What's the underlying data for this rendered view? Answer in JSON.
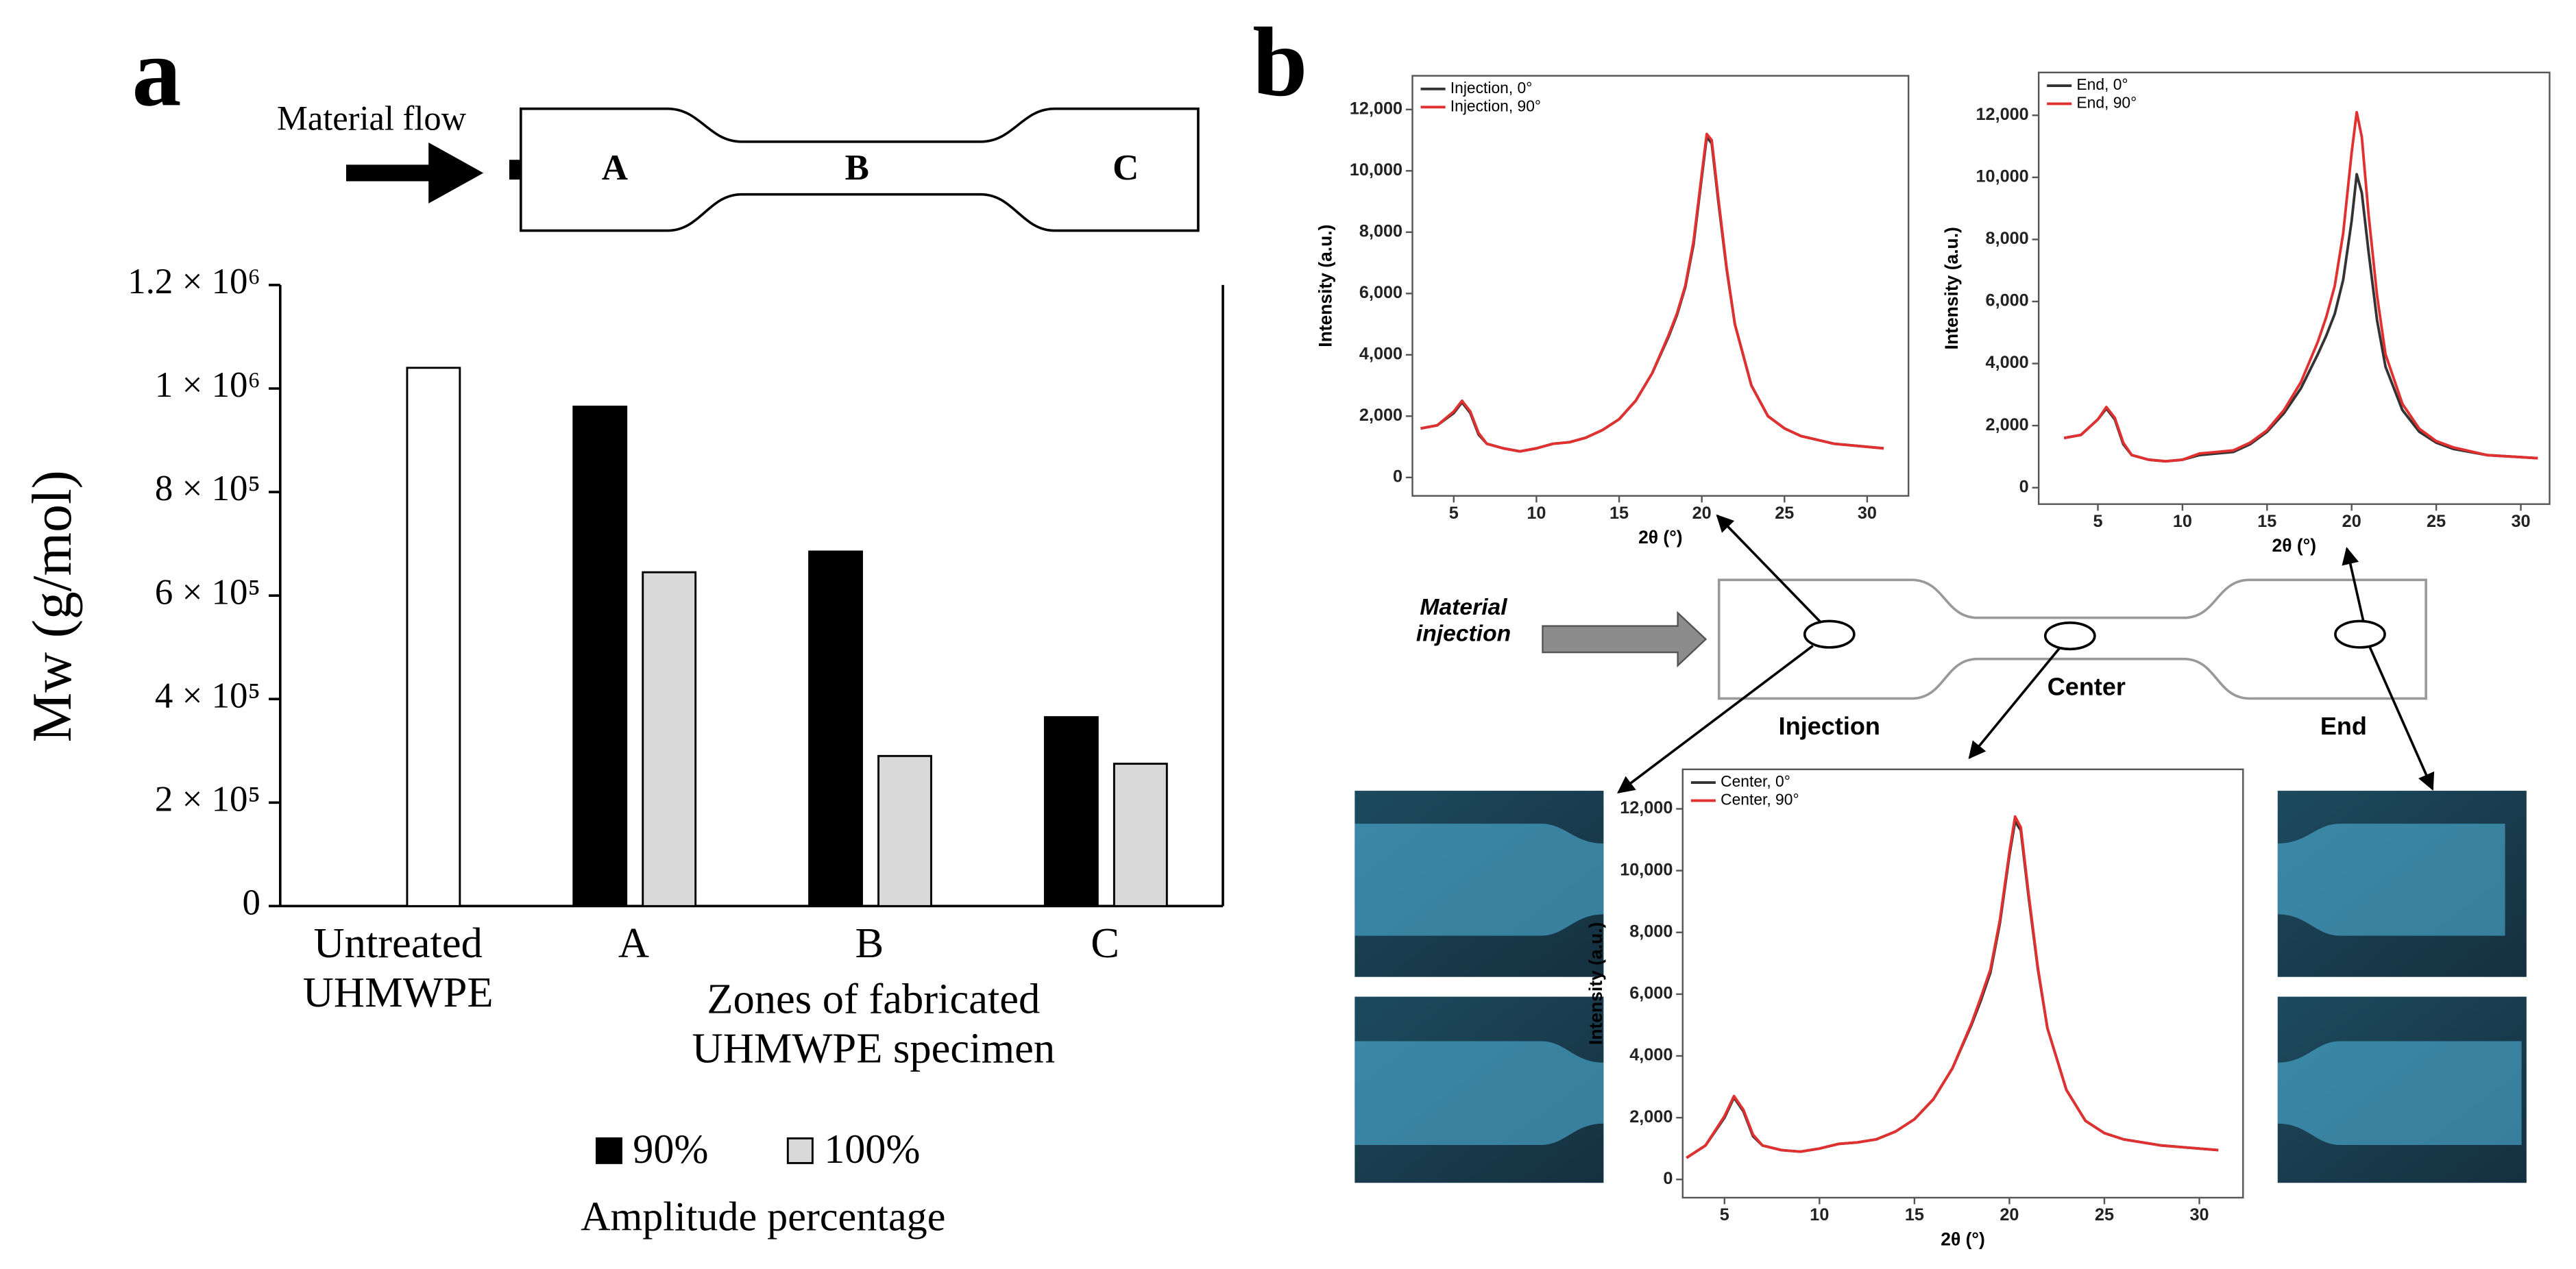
{
  "panel_labels": [
    "a",
    "b"
  ],
  "diagram_a": {
    "flow_label": "Material flow",
    "zones": [
      "A",
      "B",
      "C"
    ]
  },
  "diagram_b": {
    "injection_label": "Material injection",
    "locations": [
      "Injection",
      "Center",
      "End"
    ]
  },
  "chart_data": [
    {
      "type": "bar",
      "categories": [
        "Untreated UHMWPE",
        "A",
        "B",
        "C"
      ],
      "series": [
        {
          "name": "90%",
          "color": "#000000",
          "values": [
            null,
            965000,
            685000,
            365000
          ]
        },
        {
          "name": "100%",
          "color": "#d9d9d9",
          "point_colors": [
            "#ffffff",
            "#d9d9d9",
            "#d9d9d9",
            "#d9d9d9"
          ],
          "values": [
            1040000,
            645000,
            290000,
            275000
          ]
        }
      ],
      "xlabel": "Zones of fabricated UHMWPE specimen",
      "ylabel": "Mw (g/mol)",
      "legend_title": "Amplitude percentage",
      "ylim": [
        0,
        1200000
      ],
      "yticks": [
        0,
        {
          "value": 200000,
          "label": "2 × 10⁵"
        },
        {
          "value": 400000,
          "label": "4 × 10⁵"
        },
        {
          "value": 600000,
          "label": "6 × 10⁵"
        },
        {
          "value": 800000,
          "label": "8 × 10⁵"
        },
        {
          "value": 1000000,
          "label": "1 × 10⁶"
        },
        {
          "value": 1200000,
          "label": "1.2 × 10⁶"
        }
      ]
    },
    {
      "type": "line",
      "x": [
        3,
        4,
        5,
        5.5,
        6,
        6.5,
        7,
        8,
        9,
        10,
        11,
        12,
        13,
        14,
        15,
        16,
        17,
        18,
        18.5,
        19,
        19.5,
        20,
        20.3,
        20.6,
        21,
        21.5,
        22,
        23,
        24,
        25,
        26,
        28,
        31
      ],
      "series": [
        {
          "name": "Injection, 0°",
          "color": "#333333",
          "values": [
            1600,
            1700,
            2100,
            2450,
            2100,
            1400,
            1100,
            950,
            850,
            950,
            1100,
            1150,
            1300,
            1550,
            1900,
            2500,
            3400,
            4600,
            5300,
            6200,
            7600,
            9800,
            11100,
            10900,
            9000,
            6800,
            5000,
            3000,
            2000,
            1600,
            1350,
            1100,
            950
          ]
        },
        {
          "name": "Injection, 90°",
          "color": "#e03030",
          "values": [
            1600,
            1700,
            2150,
            2500,
            2150,
            1450,
            1100,
            950,
            850,
            950,
            1100,
            1150,
            1300,
            1550,
            1900,
            2500,
            3400,
            4650,
            5350,
            6250,
            7700,
            9900,
            11200,
            11000,
            9100,
            6850,
            5000,
            3000,
            2000,
            1600,
            1350,
            1100,
            950
          ]
        }
      ],
      "xlabel": "2θ (°)",
      "ylabel": "Intensity (a.u.)",
      "xlim": [
        2.5,
        32.5
      ],
      "ylim": [
        -600,
        13100
      ],
      "xticks": [
        5,
        10,
        15,
        20,
        25,
        30
      ],
      "yticks": [
        0,
        {
          "value": 2000,
          "label": "2,000"
        },
        {
          "value": 4000,
          "label": "4,000"
        },
        {
          "value": 6000,
          "label": "6,000"
        },
        {
          "value": 8000,
          "label": "8,000"
        },
        {
          "value": 10000,
          "label": "10,000"
        },
        {
          "value": 12000,
          "label": "12,000"
        }
      ]
    },
    {
      "type": "line",
      "x": [
        3,
        4,
        5,
        5.5,
        6,
        6.5,
        7,
        8,
        9,
        10,
        11,
        12,
        13,
        14,
        15,
        16,
        17,
        18,
        18.5,
        19,
        19.5,
        20,
        20.3,
        20.6,
        21,
        21.5,
        22,
        23,
        24,
        25,
        26,
        28,
        31
      ],
      "series": [
        {
          "name": "End, 0°",
          "color": "#333333",
          "values": [
            1600,
            1700,
            2200,
            2550,
            2200,
            1400,
            1050,
            900,
            850,
            900,
            1050,
            1100,
            1150,
            1400,
            1800,
            2400,
            3200,
            4300,
            4900,
            5600,
            6700,
            8600,
            10100,
            9500,
            7600,
            5400,
            3900,
            2500,
            1800,
            1450,
            1250,
            1050,
            950
          ]
        },
        {
          "name": "End, 90°",
          "color": "#e03030",
          "values": [
            1600,
            1700,
            2200,
            2600,
            2250,
            1450,
            1050,
            900,
            850,
            900,
            1100,
            1150,
            1200,
            1450,
            1850,
            2500,
            3400,
            4700,
            5500,
            6500,
            8200,
            10800,
            12100,
            11300,
            8800,
            6200,
            4300,
            2700,
            1900,
            1500,
            1300,
            1050,
            950
          ]
        }
      ],
      "xlabel": "2θ (°)",
      "ylabel": "Intensity (a.u.)",
      "xlim": [
        1.5,
        31.7
      ],
      "ylim": [
        -530,
        13380
      ],
      "xticks": [
        5,
        10,
        15,
        20,
        25,
        30
      ],
      "yticks": [
        0,
        {
          "value": 2000,
          "label": "2,000"
        },
        {
          "value": 4000,
          "label": "4,000"
        },
        {
          "value": 6000,
          "label": "6,000"
        },
        {
          "value": 8000,
          "label": "8,000"
        },
        {
          "value": 10000,
          "label": "10,000"
        },
        {
          "value": 12000,
          "label": "12,000"
        }
      ]
    },
    {
      "type": "line",
      "x": [
        3,
        4,
        5,
        5.5,
        6,
        6.5,
        7,
        8,
        9,
        10,
        11,
        12,
        13,
        14,
        15,
        16,
        17,
        18,
        18.5,
        19,
        19.5,
        20,
        20.3,
        20.6,
        21,
        21.5,
        22,
        23,
        24,
        25,
        26,
        28,
        31
      ],
      "series": [
        {
          "name": "Center, 0°",
          "color": "#333333",
          "values": [
            700,
            1100,
            2000,
            2650,
            2200,
            1400,
            1100,
            950,
            900,
            1000,
            1150,
            1200,
            1300,
            1550,
            1950,
            2600,
            3600,
            5000,
            5800,
            6700,
            8300,
            10500,
            11600,
            11300,
            9200,
            6800,
            4900,
            2900,
            1900,
            1500,
            1300,
            1100,
            950
          ]
        },
        {
          "name": "Center, 90°",
          "color": "#e03030",
          "values": [
            700,
            1100,
            2050,
            2700,
            2250,
            1450,
            1100,
            950,
            900,
            1000,
            1150,
            1200,
            1300,
            1550,
            1950,
            2600,
            3600,
            5050,
            5900,
            6800,
            8400,
            10600,
            11750,
            11400,
            9300,
            6850,
            4900,
            2900,
            1900,
            1500,
            1300,
            1100,
            950
          ]
        }
      ],
      "xlabel": "2θ (°)",
      "ylabel": "Intensity (a.u.)",
      "xlim": [
        2.8,
        32.3
      ],
      "ylim": [
        -590,
        13280
      ],
      "xticks": [
        5,
        10,
        15,
        20,
        25,
        30
      ],
      "yticks": [
        0,
        {
          "value": 2000,
          "label": "2,000"
        },
        {
          "value": 4000,
          "label": "4,000"
        },
        {
          "value": 6000,
          "label": "6,000"
        },
        {
          "value": 8000,
          "label": "8,000"
        },
        {
          "value": 10000,
          "label": "10,000"
        },
        {
          "value": 12000,
          "label": "12,000"
        }
      ]
    }
  ]
}
